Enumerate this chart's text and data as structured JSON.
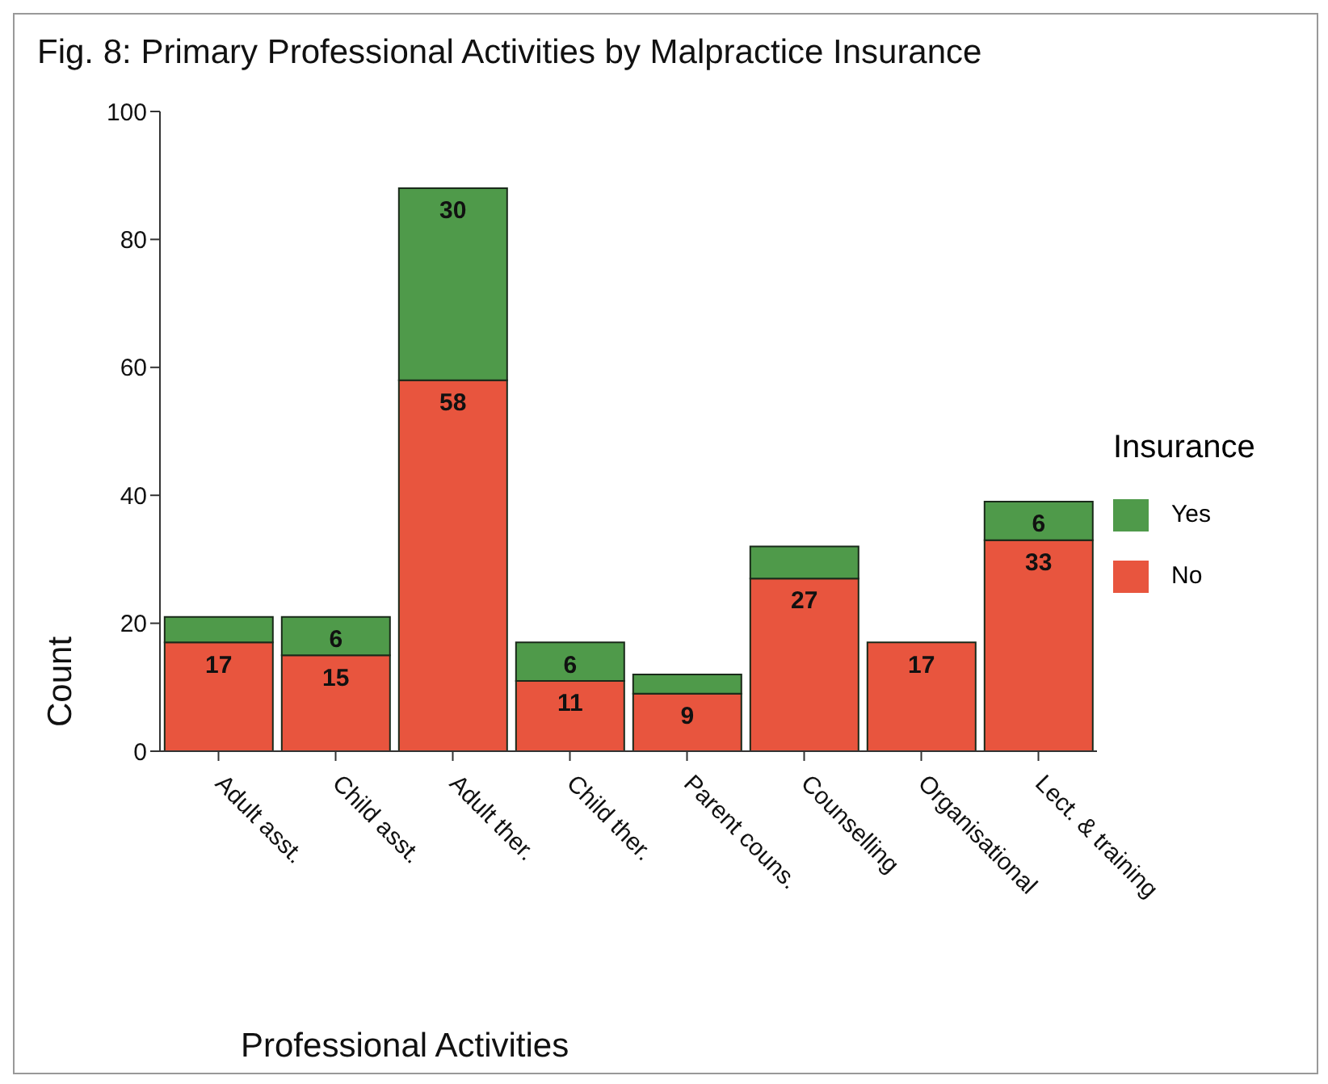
{
  "chart_data": {
    "type": "bar",
    "title": "Fig.  8: Primary Professional Activities by Malpractice Insurance",
    "xlabel": "Professional Activities",
    "ylabel": "Count",
    "legend_title": "Insurance",
    "categories": [
      "Adult asst.",
      "Child asst.",
      "Adult ther.",
      "Child ther.",
      "Parent couns.",
      "Counselling",
      "Organisational",
      "Lect. & training"
    ],
    "series": [
      {
        "name": "No",
        "color": "#e8553e",
        "values": [
          17,
          15,
          58,
          11,
          9,
          27,
          17,
          33
        ],
        "value_labels": [
          "17",
          "15",
          "58",
          "11",
          "9",
          "27",
          "17",
          "33"
        ]
      },
      {
        "name": "Yes",
        "color": "#4f9a4a",
        "values": [
          4,
          6,
          30,
          6,
          3,
          5,
          0,
          6
        ],
        "value_labels": [
          null,
          "6",
          "30",
          "6",
          null,
          null,
          null,
          "6"
        ]
      }
    ],
    "stacked": true,
    "ylim": [
      0,
      100
    ],
    "yticks": [
      0,
      20,
      40,
      60,
      80,
      100
    ],
    "legend": "right",
    "grid": false
  }
}
